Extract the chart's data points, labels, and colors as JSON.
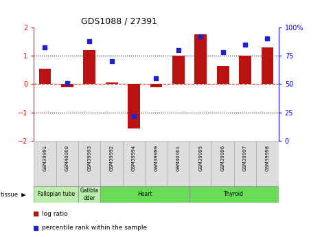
{
  "title": "GDS1088 / 27391",
  "samples": [
    "GSM39991",
    "GSM40000",
    "GSM39993",
    "GSM39992",
    "GSM39994",
    "GSM39999",
    "GSM40001",
    "GSM39995",
    "GSM39996",
    "GSM39997",
    "GSM39998"
  ],
  "log_ratio": [
    0.55,
    -0.12,
    1.2,
    0.05,
    -1.55,
    -0.12,
    1.0,
    1.75,
    0.65,
    1.0,
    1.3
  ],
  "percentile": [
    82,
    51,
    88,
    70,
    22,
    55,
    80,
    92,
    78,
    85,
    90
  ],
  "tissues": [
    {
      "label": "Fallopian tube",
      "start": 0,
      "end": 2,
      "color": "#bbeeaa"
    },
    {
      "label": "Gallbla\ndder",
      "start": 2,
      "end": 3,
      "color": "#bbeeaa"
    },
    {
      "label": "Heart",
      "start": 3,
      "end": 7,
      "color": "#66dd55"
    },
    {
      "label": "Thyroid",
      "start": 7,
      "end": 11,
      "color": "#66dd55"
    }
  ],
  "bar_color": "#bb1111",
  "dot_color": "#2222cc",
  "ylim_left": [
    -2,
    2
  ],
  "ylim_right": [
    0,
    100
  ],
  "yticks_left": [
    -2,
    -1,
    0,
    1,
    2
  ],
  "yticks_right": [
    0,
    25,
    50,
    75,
    100
  ],
  "ytick_labels_right": [
    "0",
    "25",
    "50",
    "75",
    "100%"
  ],
  "legend_items": [
    "log ratio",
    "percentile rank within the sample"
  ],
  "sample_box_color": "#dddddd",
  "sample_box_edge": "#aaaaaa"
}
